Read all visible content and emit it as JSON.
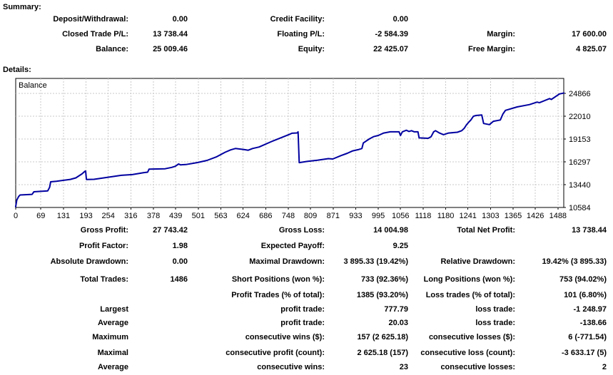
{
  "summary": {
    "heading": "Summary:",
    "rows": [
      [
        {
          "label": "Deposit/Withdrawal:",
          "value": "0.00"
        },
        {
          "label": "Credit Facility:",
          "value": "0.00"
        },
        {
          "label": "",
          "value": ""
        }
      ],
      [
        {
          "label": "Closed Trade P/L:",
          "value": "13 738.44"
        },
        {
          "label": "Floating P/L:",
          "value": "-2 584.39"
        },
        {
          "label": "Margin:",
          "value": "17 600.00"
        }
      ],
      [
        {
          "label": "Balance:",
          "value": "25 009.46"
        },
        {
          "label": "Equity:",
          "value": "22 425.07"
        },
        {
          "label": "Free Margin:",
          "value": "4 825.07"
        }
      ]
    ]
  },
  "details": {
    "heading": "Details:",
    "rows": [
      [
        {
          "label": "Gross Profit:",
          "value": "27 743.42"
        },
        {
          "label": "Gross Loss:",
          "value": "14 004.98"
        },
        {
          "label": "Total Net Profit:",
          "value": "13 738.44"
        }
      ],
      [
        {
          "label": "Profit Factor:",
          "value": "1.98"
        },
        {
          "label": "Expected Payoff:",
          "value": "9.25"
        },
        {
          "label": "",
          "value": ""
        }
      ],
      [
        {
          "label": "Absolute Drawdown:",
          "value": "0.00"
        },
        {
          "label": "Maximal Drawdown:",
          "value": "3 895.33 (19.42%)"
        },
        {
          "label": "Relative Drawdown:",
          "value": "19.42% (3 895.33)"
        }
      ],
      [
        {
          "label": "Total Trades:",
          "value": "1486"
        },
        {
          "label": "Short Positions (won %):",
          "value": "733 (92.36%)"
        },
        {
          "label": "Long Positions (won %):",
          "value": "753 (94.02%)"
        }
      ],
      [
        {
          "label": "",
          "value": ""
        },
        {
          "label": "Profit Trades (% of total):",
          "value": "1385 (93.20%)"
        },
        {
          "label": "Loss trades (% of total):",
          "value": "101 (6.80%)"
        }
      ],
      [
        {
          "label": "Largest",
          "value": ""
        },
        {
          "label": "profit trade:",
          "value": "777.79"
        },
        {
          "label": "loss trade:",
          "value": "-1 248.97"
        }
      ],
      [
        {
          "label": "Average",
          "value": ""
        },
        {
          "label": "profit trade:",
          "value": "20.03"
        },
        {
          "label": "loss trade:",
          "value": "-138.66"
        }
      ],
      [
        {
          "label": "Maximum",
          "value": ""
        },
        {
          "label": "consecutive wins ($):",
          "value": "157 (2 625.18)"
        },
        {
          "label": "consecutive losses ($):",
          "value": "6 (-771.54)"
        }
      ],
      [
        {
          "label": "Maximal",
          "value": ""
        },
        {
          "label": "consecutive profit (count):",
          "value": "2 625.18 (157)"
        },
        {
          "label": "consecutive loss (count):",
          "value": "-3 633.17 (5)"
        }
      ],
      [
        {
          "label": "Average",
          "value": ""
        },
        {
          "label": "consecutive wins:",
          "value": "23"
        },
        {
          "label": "consecutive losses:",
          "value": "2"
        }
      ]
    ]
  },
  "chart_data": {
    "type": "line",
    "legend": "Balance",
    "xlabel": "",
    "ylabel": "",
    "xlim": [
      0,
      1504
    ],
    "ylim": [
      10584,
      26742
    ],
    "x_ticks": [
      0,
      69,
      131,
      193,
      254,
      316,
      378,
      439,
      501,
      563,
      624,
      686,
      748,
      809,
      871,
      933,
      995,
      1056,
      1118,
      1180,
      1241,
      1303,
      1365,
      1426,
      1488
    ],
    "y_ticks": [
      10584,
      13440,
      16297,
      19153,
      22010,
      24866
    ],
    "grid": true,
    "grid_color": "#c8c8c8",
    "line_color": "#0000a0",
    "border_color": "#000000",
    "points": [
      [
        0,
        10700
      ],
      [
        3,
        11500
      ],
      [
        8,
        11950
      ],
      [
        12,
        12150
      ],
      [
        45,
        12230
      ],
      [
        50,
        12550
      ],
      [
        88,
        12660
      ],
      [
        93,
        13100
      ],
      [
        96,
        13800
      ],
      [
        112,
        13870
      ],
      [
        150,
        14100
      ],
      [
        165,
        14290
      ],
      [
        182,
        14790
      ],
      [
        190,
        15120
      ],
      [
        192,
        15150
      ],
      [
        194,
        14090
      ],
      [
        215,
        14110
      ],
      [
        250,
        14340
      ],
      [
        290,
        14610
      ],
      [
        320,
        14700
      ],
      [
        352,
        14950
      ],
      [
        362,
        15000
      ],
      [
        366,
        15390
      ],
      [
        410,
        15430
      ],
      [
        428,
        15600
      ],
      [
        438,
        15740
      ],
      [
        447,
        16030
      ],
      [
        452,
        15920
      ],
      [
        467,
        15960
      ],
      [
        499,
        16210
      ],
      [
        525,
        16480
      ],
      [
        550,
        16900
      ],
      [
        575,
        17500
      ],
      [
        590,
        17800
      ],
      [
        603,
        17965
      ],
      [
        628,
        17820
      ],
      [
        638,
        17750
      ],
      [
        650,
        17965
      ],
      [
        668,
        18150
      ],
      [
        700,
        18800
      ],
      [
        730,
        19350
      ],
      [
        752,
        19750
      ],
      [
        758,
        19880
      ],
      [
        772,
        19910
      ],
      [
        775,
        20060
      ],
      [
        778,
        16200
      ],
      [
        800,
        16350
      ],
      [
        828,
        16500
      ],
      [
        858,
        16700
      ],
      [
        870,
        16650
      ],
      [
        893,
        17080
      ],
      [
        910,
        17370
      ],
      [
        925,
        17670
      ],
      [
        940,
        17820
      ],
      [
        950,
        17970
      ],
      [
        954,
        18650
      ],
      [
        970,
        19150
      ],
      [
        982,
        19450
      ],
      [
        995,
        19600
      ],
      [
        1010,
        19900
      ],
      [
        1028,
        20060
      ],
      [
        1052,
        20060
      ],
      [
        1056,
        19600
      ],
      [
        1061,
        20060
      ],
      [
        1072,
        20250
      ],
      [
        1079,
        20100
      ],
      [
        1086,
        20200
      ],
      [
        1094,
        20060
      ],
      [
        1104,
        20060
      ],
      [
        1107,
        19300
      ],
      [
        1132,
        19240
      ],
      [
        1140,
        19450
      ],
      [
        1147,
        20060
      ],
      [
        1152,
        20200
      ],
      [
        1163,
        19900
      ],
      [
        1174,
        19700
      ],
      [
        1188,
        19900
      ],
      [
        1212,
        20000
      ],
      [
        1224,
        20200
      ],
      [
        1231,
        20500
      ],
      [
        1237,
        20940
      ],
      [
        1243,
        21240
      ],
      [
        1249,
        21540
      ],
      [
        1256,
        22000
      ],
      [
        1263,
        22100
      ],
      [
        1279,
        22160
      ],
      [
        1284,
        21100
      ],
      [
        1300,
        20960
      ],
      [
        1311,
        21380
      ],
      [
        1330,
        21540
      ],
      [
        1337,
        22280
      ],
      [
        1344,
        22740
      ],
      [
        1376,
        23170
      ],
      [
        1410,
        23470
      ],
      [
        1431,
        23780
      ],
      [
        1437,
        23700
      ],
      [
        1465,
        24220
      ],
      [
        1470,
        24110
      ],
      [
        1492,
        24800
      ],
      [
        1504,
        24910
      ]
    ]
  }
}
